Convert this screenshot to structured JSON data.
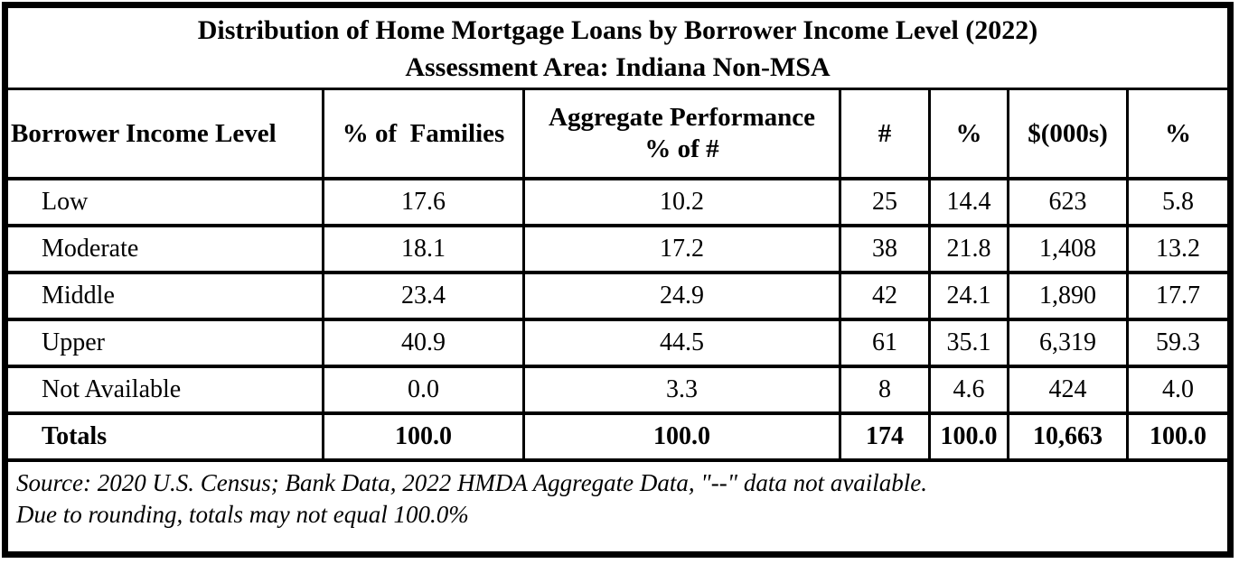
{
  "title": {
    "line1": "Distribution of Home Mortgage Loans by Borrower Income Level (2022)",
    "line2": "Assessment Area: Indiana Non-MSA"
  },
  "table": {
    "columns": [
      "Borrower Income Level",
      "% of  Families",
      "Aggregate Performance\n% of #",
      "#",
      "%",
      "$(000s)",
      "%"
    ],
    "rows": [
      [
        "Low",
        "17.6",
        "10.2",
        "25",
        "14.4",
        "623",
        "5.8"
      ],
      [
        "Moderate",
        "18.1",
        "17.2",
        "38",
        "21.8",
        "1,408",
        "13.2"
      ],
      [
        "Middle",
        "23.4",
        "24.9",
        "42",
        "24.1",
        "1,890",
        "17.7"
      ],
      [
        "Upper",
        "40.9",
        "44.5",
        "61",
        "35.1",
        "6,319",
        "59.3"
      ],
      [
        "Not Available",
        "0.0",
        "3.3",
        "8",
        "4.6",
        "424",
        "4.0"
      ]
    ],
    "totals_row": [
      "Totals",
      "100.0",
      "100.0",
      "174",
      "100.0",
      "10,663",
      "100.0"
    ]
  },
  "footnote": {
    "line1": "Source: 2020 U.S. Census; Bank Data, 2022 HMDA Aggregate Data, \"--\" data not available.",
    "line2": "Due to rounding, totals may not equal 100.0%"
  },
  "colors": {
    "border": "#000000",
    "text": "#000000",
    "background": "#ffffff"
  }
}
